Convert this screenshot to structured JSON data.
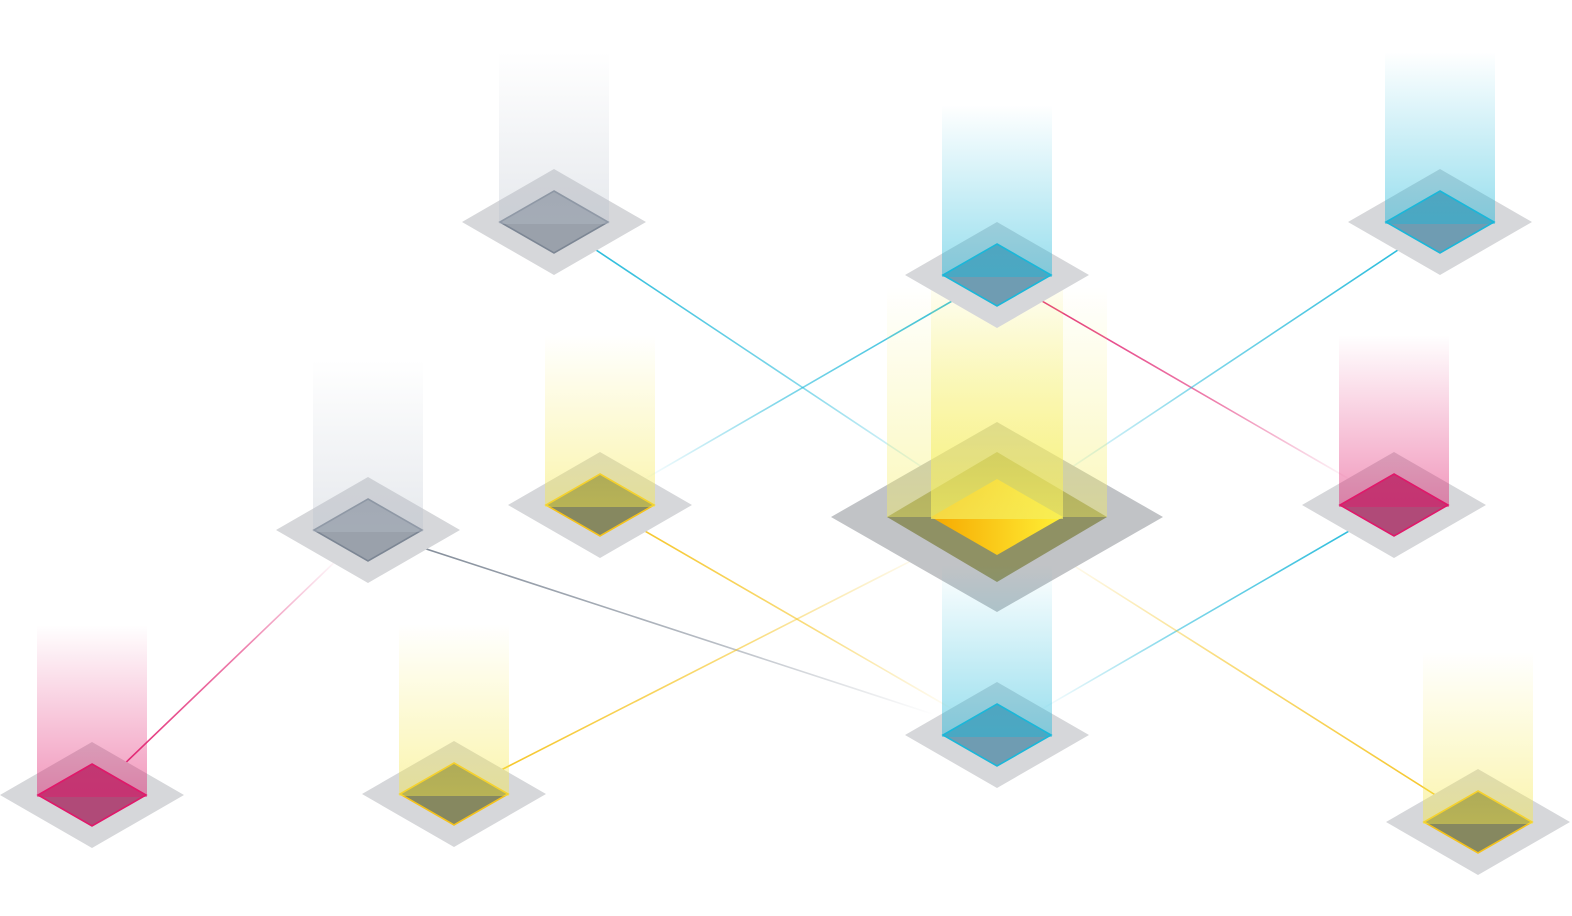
{
  "palette": {
    "background": "#ffffff",
    "platform": "#d6d7da",
    "platform_center": "#c1c3c6",
    "cyan": "#1ab7d9",
    "magenta": "#e0186a",
    "yellow": "#f5c21a",
    "slate": "#7c8694"
  },
  "nodes": [
    {
      "id": "hub",
      "role": "central-hub",
      "color": "yellow"
    },
    {
      "id": "n-top-left",
      "color": "slate"
    },
    {
      "id": "n-top-center",
      "color": "cyan"
    },
    {
      "id": "n-top-right",
      "color": "cyan"
    },
    {
      "id": "n-mid-left",
      "color": "slate"
    },
    {
      "id": "n-mid-center-left",
      "color": "yellow"
    },
    {
      "id": "n-mid-right",
      "color": "magenta"
    },
    {
      "id": "n-bottom-far-left",
      "color": "magenta"
    },
    {
      "id": "n-bottom-left",
      "color": "yellow"
    },
    {
      "id": "n-bottom-center",
      "color": "cyan"
    },
    {
      "id": "n-bottom-right",
      "color": "yellow"
    }
  ],
  "links": [
    {
      "from": "n-top-left",
      "to": "hub",
      "color": "cyan"
    },
    {
      "from": "n-top-center",
      "to": "n-mid-center-left",
      "color": "cyan"
    },
    {
      "from": "n-top-center",
      "to": "n-mid-right",
      "color": "magenta"
    },
    {
      "from": "n-top-right",
      "to": "hub",
      "color": "cyan"
    },
    {
      "from": "n-mid-left",
      "to": "n-bottom-center",
      "color": "slate"
    },
    {
      "from": "n-mid-center-left",
      "to": "n-bottom-center",
      "color": "yellow"
    },
    {
      "from": "n-mid-right",
      "to": "n-bottom-center",
      "color": "cyan"
    },
    {
      "from": "n-bottom-far-left",
      "to": "n-mid-left",
      "color": "magenta"
    },
    {
      "from": "n-bottom-left",
      "to": "hub",
      "color": "yellow"
    },
    {
      "from": "n-bottom-right",
      "to": "hub",
      "color": "yellow"
    }
  ]
}
